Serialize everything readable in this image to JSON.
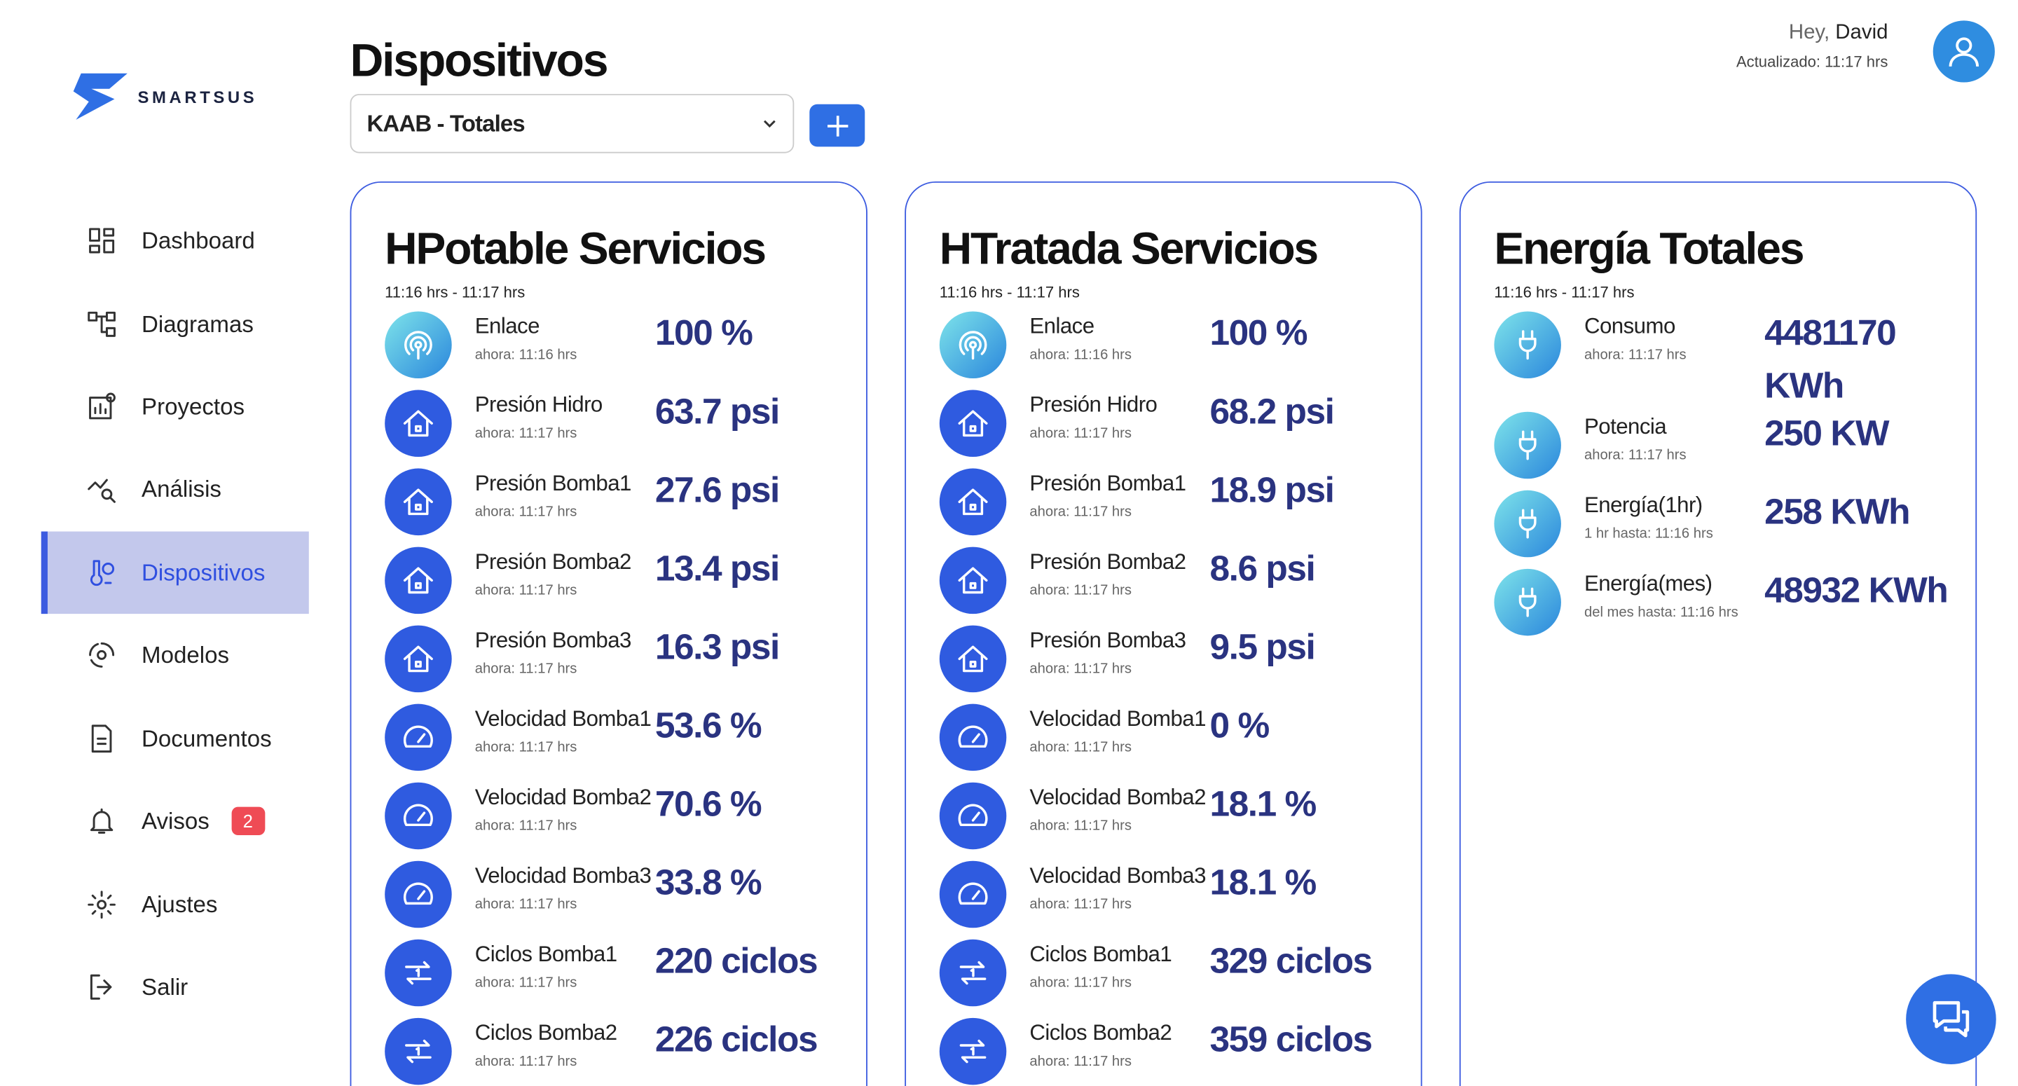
{
  "brand": "SMARTSUS",
  "nav": [
    {
      "label": "Dashboard"
    },
    {
      "label": "Diagramas"
    },
    {
      "label": "Proyectos"
    },
    {
      "label": "Análisis"
    },
    {
      "label": "Dispositivos"
    },
    {
      "label": "Modelos"
    },
    {
      "label": "Documentos"
    },
    {
      "label": "Avisos",
      "badge": "2"
    },
    {
      "label": "Ajustes"
    },
    {
      "label": "Salir"
    }
  ],
  "header": {
    "title": "Dispositivos",
    "select": "KAAB - Totales",
    "greeting": "Hey,",
    "user": "David",
    "updated": "Actualizado: 11:17 hrs"
  },
  "cards": [
    {
      "title": "HPotable Servicios",
      "range": "11:16 hrs - 11:17 hrs",
      "items": [
        {
          "label": "Enlace",
          "time": "ahora: 11:16 hrs",
          "value": "100 %"
        },
        {
          "label": "Presión Hidro",
          "time": "ahora: 11:17 hrs",
          "value": "63.7 psi"
        },
        {
          "label": "Presión Bomba1",
          "time": "ahora: 11:17 hrs",
          "value": "27.6 psi"
        },
        {
          "label": "Presión Bomba2",
          "time": "ahora: 11:17 hrs",
          "value": "13.4 psi"
        },
        {
          "label": "Presión Bomba3",
          "time": "ahora: 11:17 hrs",
          "value": "16.3 psi"
        },
        {
          "label": "Velocidad Bomba1",
          "time": "ahora: 11:17 hrs",
          "value": "53.6 %"
        },
        {
          "label": "Velocidad Bomba2",
          "time": "ahora: 11:17 hrs",
          "value": "70.6 %"
        },
        {
          "label": "Velocidad Bomba3",
          "time": "ahora: 11:17 hrs",
          "value": "33.8 %"
        },
        {
          "label": "Ciclos Bomba1",
          "time": "ahora: 11:17 hrs",
          "value": "220 ciclos"
        },
        {
          "label": "Ciclos Bomba2",
          "time": "ahora: 11:17 hrs",
          "value": "226 ciclos"
        }
      ]
    },
    {
      "title": "HTratada Servicios",
      "range": "11:16 hrs - 11:17 hrs",
      "items": [
        {
          "label": "Enlace",
          "time": "ahora: 11:16 hrs",
          "value": "100 %"
        },
        {
          "label": "Presión Hidro",
          "time": "ahora: 11:17 hrs",
          "value": "68.2 psi"
        },
        {
          "label": "Presión Bomba1",
          "time": "ahora: 11:17 hrs",
          "value": "18.9 psi"
        },
        {
          "label": "Presión Bomba2",
          "time": "ahora: 11:17 hrs",
          "value": "8.6 psi"
        },
        {
          "label": "Presión Bomba3",
          "time": "ahora: 11:17 hrs",
          "value": "9.5 psi"
        },
        {
          "label": "Velocidad Bomba1",
          "time": "ahora: 11:17 hrs",
          "value": "0 %"
        },
        {
          "label": "Velocidad Bomba2",
          "time": "ahora: 11:17 hrs",
          "value": "18.1 %"
        },
        {
          "label": "Velocidad Bomba3",
          "time": "ahora: 11:17 hrs",
          "value": "18.1 %"
        },
        {
          "label": "Ciclos Bomba1",
          "time": "ahora: 11:17 hrs",
          "value": "329 ciclos"
        },
        {
          "label": "Ciclos Bomba2",
          "time": "ahora: 11:17 hrs",
          "value": "359 ciclos"
        }
      ]
    },
    {
      "title": "Energía Totales",
      "range": "11:16 hrs - 11:17 hrs",
      "items": [
        {
          "label": "Consumo",
          "time": "ahora: 11:17 hrs",
          "value": "4481170 KWh"
        },
        {
          "label": "Potencia",
          "time": "ahora: 11:17 hrs",
          "value": "250 KW"
        },
        {
          "label": "Energía(1hr)",
          "time": "1 hr hasta: 11:16 hrs",
          "value": "258 KWh"
        },
        {
          "label": "Energía(mes)",
          "time": "del mes hasta: 11:16 hrs",
          "value": "48932 KWh"
        }
      ]
    }
  ]
}
